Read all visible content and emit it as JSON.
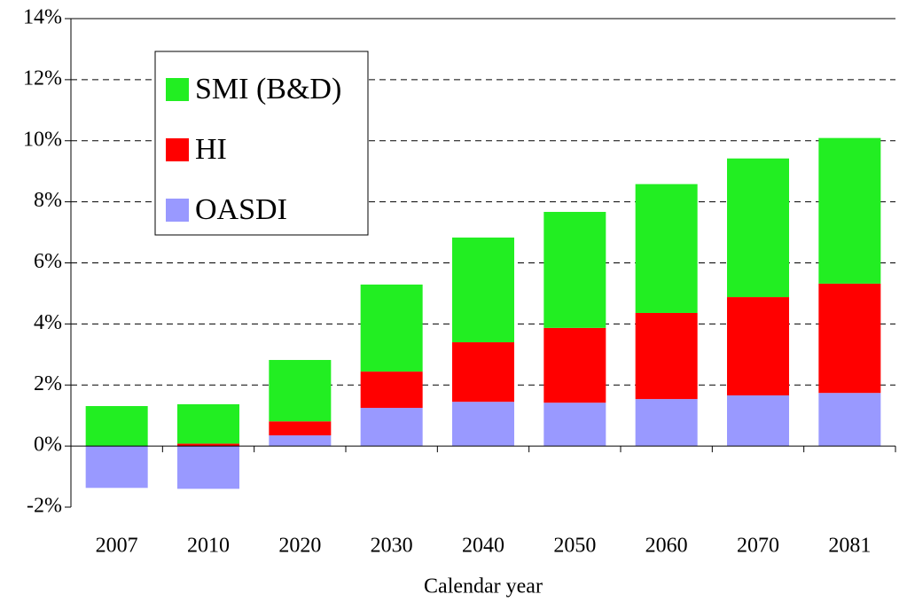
{
  "chart_data": {
    "type": "stacked_bar",
    "x_label": "Calendar year",
    "categories": [
      "2007",
      "2010",
      "2020",
      "2030",
      "2040",
      "2050",
      "2060",
      "2070",
      "2081"
    ],
    "series": [
      {
        "name": "OASDI",
        "color": "#9999ff",
        "values": [
          -1.37,
          -1.4,
          0.35,
          1.25,
          1.45,
          1.42,
          1.54,
          1.66,
          1.74
        ]
      },
      {
        "name": "HI",
        "color": "#ff0000",
        "values": [
          0,
          0.08,
          0.46,
          1.19,
          1.95,
          2.45,
          2.82,
          3.22,
          3.58
        ]
      },
      {
        "name": "SMI (B&D)",
        "color": "#22ee22",
        "values": [
          1.31,
          1.29,
          2.01,
          2.85,
          3.43,
          3.8,
          4.22,
          4.54,
          4.77
        ]
      }
    ],
    "ylim": [
      -2,
      14
    ],
    "yticks": [
      {
        "value": -2,
        "label": "-2%"
      },
      {
        "value": 0,
        "label": "0%"
      },
      {
        "value": 2,
        "label": "2%"
      },
      {
        "value": 4,
        "label": "4%"
      },
      {
        "value": 6,
        "label": "6%"
      },
      {
        "value": 8,
        "label": "8%"
      },
      {
        "value": 10,
        "label": "10%"
      },
      {
        "value": 12,
        "label": "12%"
      },
      {
        "value": 14,
        "label": "14%"
      }
    ],
    "grid": true
  }
}
